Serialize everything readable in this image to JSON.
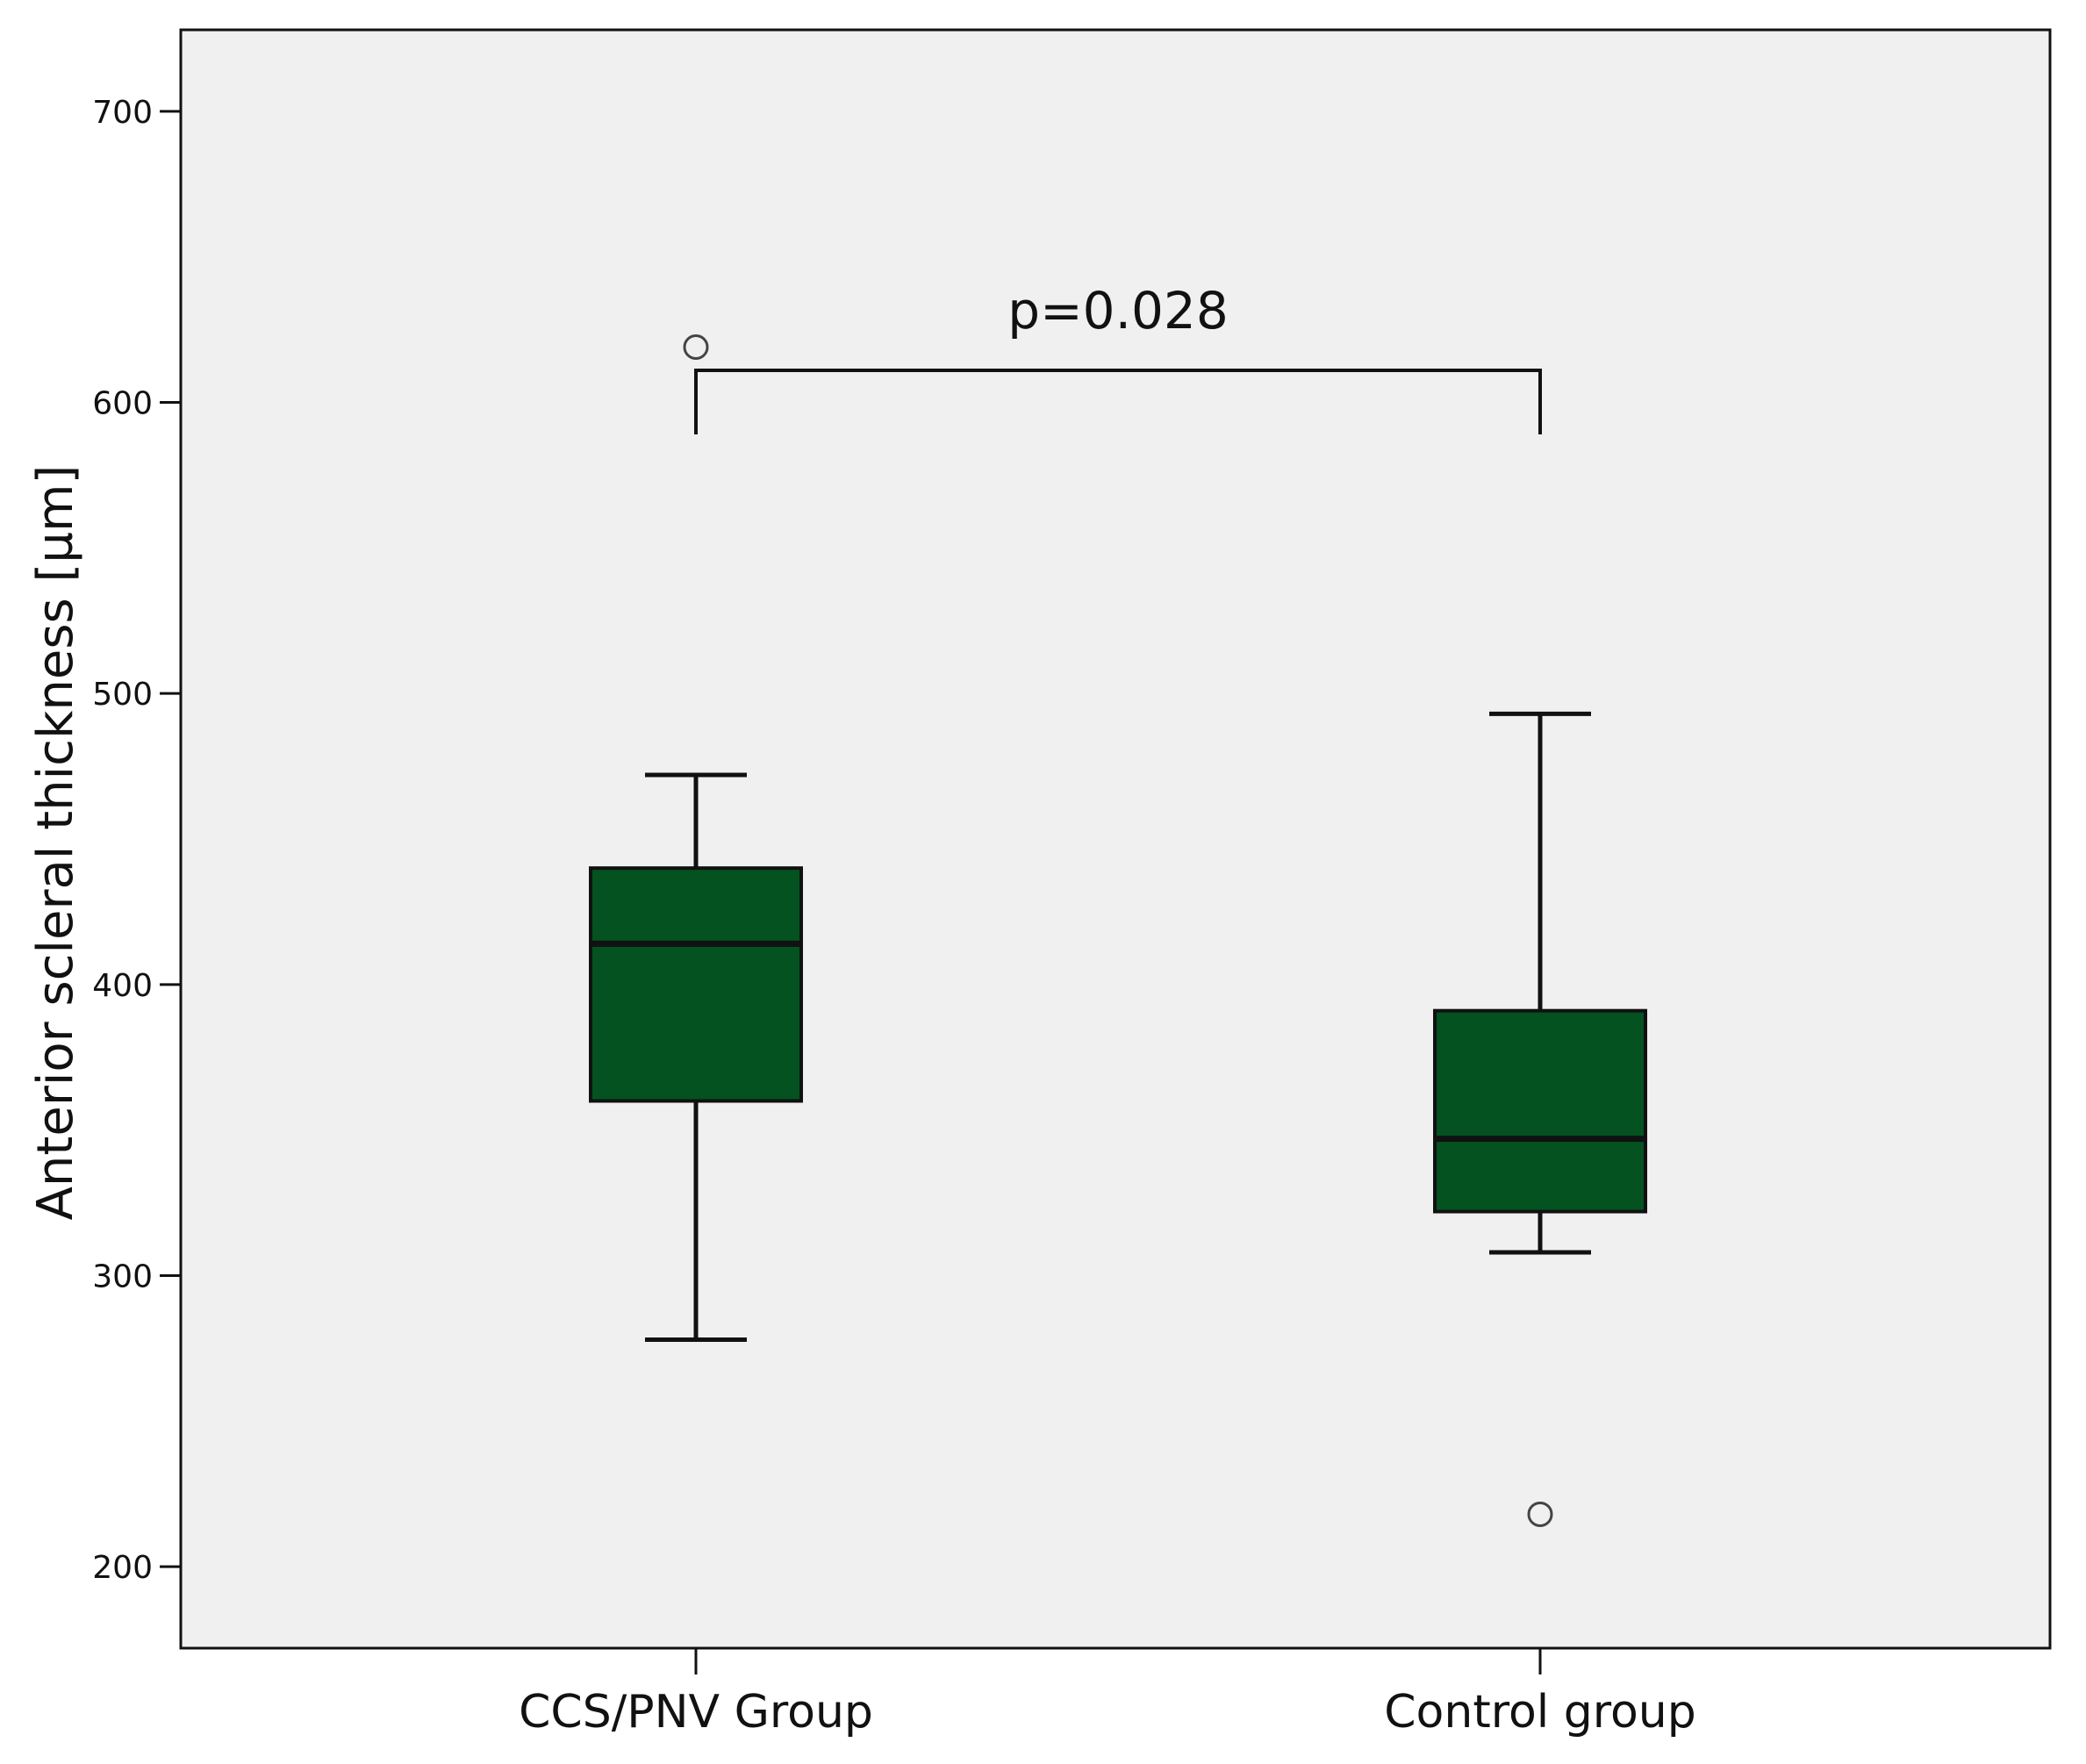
{
  "chart_data": {
    "type": "box",
    "title": "",
    "xlabel": "",
    "ylabel": "Anterior scleral thickness [µm]",
    "ylim": [
      172,
      728
    ],
    "yticks": [
      200,
      300,
      400,
      500,
      600,
      700
    ],
    "grid": false,
    "categories": [
      "CCS/PNV Group",
      "Control group"
    ],
    "boxes": [
      {
        "category": "CCS/PNV Group",
        "whisker_low": 278,
        "q1": 360,
        "median": 414,
        "q3": 440,
        "whisker_high": 472,
        "outliers": [
          619
        ]
      },
      {
        "category": "Control group",
        "whisker_low": 308,
        "q1": 322,
        "median": 347,
        "q3": 391,
        "whisker_high": 493,
        "outliers": [
          218
        ]
      }
    ],
    "annotation": {
      "text": "p=0.028",
      "between": [
        "CCS/PNV Group",
        "Control group"
      ],
      "bracket_y": 611,
      "bracket_drop_to": 589
    },
    "colors": {
      "box_fill": "#03521f",
      "plot_background": "#eff0ef",
      "line": "#111111",
      "outlier_stroke": "#444444"
    }
  }
}
